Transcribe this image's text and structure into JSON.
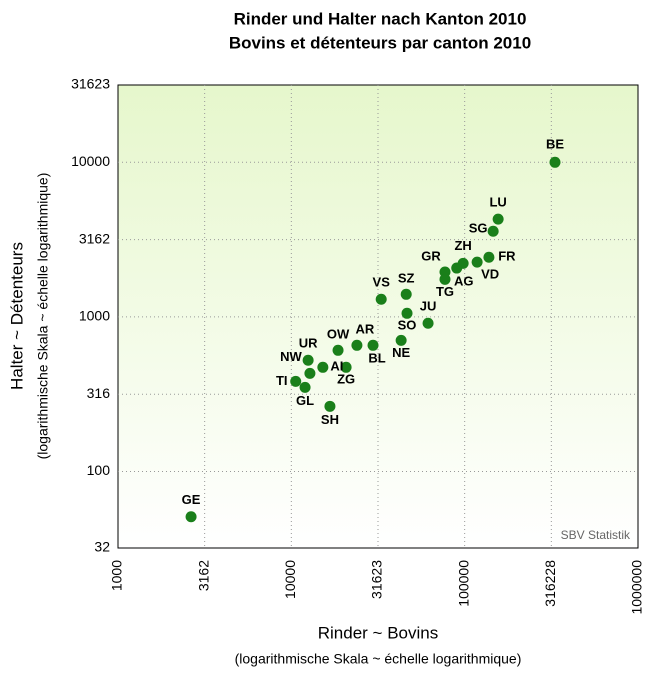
{
  "chart_data": {
    "type": "scatter",
    "title": "Rinder und Halter nach Kanton 2010",
    "subtitle": "Bovins et détenteurs par canton 2010",
    "x_label": "Rinder ~ Bovins",
    "x_label_note": "(logarithmische Skala ~ échelle logarithmique)",
    "y_label": "Halter ~ Détenteurs",
    "y_label_note": "(logarithmische Skala ~ échelle logarithmique)",
    "source": "SBV Statistik",
    "xscale": "log",
    "yscale": "log",
    "grid": true,
    "color": "#1a7f1a",
    "xlim": [
      1000,
      1000000
    ],
    "ylim": [
      32,
      31623
    ],
    "xticks": [
      1000,
      3162,
      10000,
      31623,
      100000,
      316228,
      1000000
    ],
    "yticks": [
      32,
      100,
      316,
      1000,
      3162,
      10000,
      31623
    ],
    "series": [
      {
        "labels": [
          "BE",
          "LU",
          "SG",
          "FR",
          "ZH",
          "VD",
          "AG",
          "GR",
          "TG",
          "SZ",
          "VS",
          "JU",
          "SO",
          "NE",
          "BL",
          "AR",
          "OW",
          "UR",
          "ZG",
          "AI",
          "NW",
          "TI",
          "GL",
          "SH",
          "GE"
        ],
        "x": [
          332000,
          156000,
          146000,
          138000,
          98000,
          118000,
          90000,
          77000,
          77000,
          46000,
          33000,
          61500,
          46500,
          43000,
          29600,
          23900,
          18600,
          12500,
          20700,
          15200,
          12800,
          10600,
          12000,
          16700,
          2640
        ],
        "values": [
          10000,
          4290,
          3580,
          2430,
          2220,
          2260,
          2070,
          1950,
          1750,
          1400,
          1300,
          910,
          1055,
          705,
          655,
          655,
          608,
          524,
          472,
          472,
          431,
          383,
          350,
          264,
          51
        ]
      }
    ]
  }
}
